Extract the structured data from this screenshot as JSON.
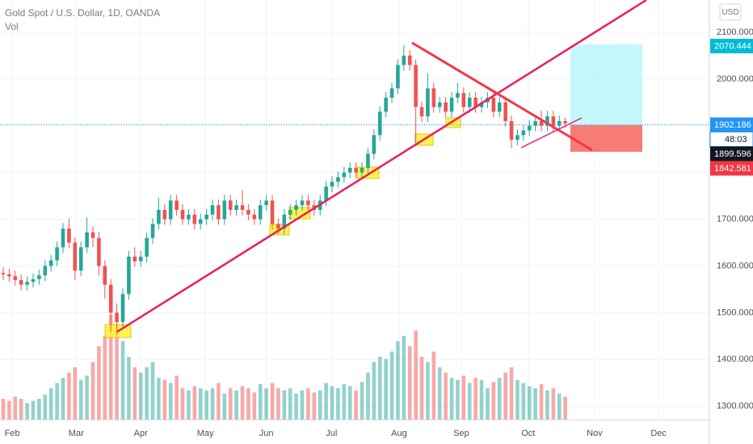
{
  "header": {
    "title": "Gold Spot / U.S. Dollar, 1D, OANDA",
    "volume_label": "Vol",
    "currency": "USD"
  },
  "chart_data": {
    "type": "candlestick",
    "up_color": "#26a69a",
    "down_color": "#ef5350",
    "grid": true,
    "ylim": [
      1271,
      2169
    ],
    "xlim": [
      -0.54,
      118.1
    ],
    "yticks": [
      {
        "value": 2100,
        "label": "2100.000"
      },
      {
        "value": 2000,
        "label": "2000.000"
      },
      {
        "value": 1900,
        "label": "1900.000"
      },
      {
        "value": 1800,
        "label": "1800.000"
      },
      {
        "value": 1700,
        "label": "1700.000"
      },
      {
        "value": 1600,
        "label": "1600.000"
      },
      {
        "value": 1500,
        "label": "1500.000"
      },
      {
        "value": 1400,
        "label": "1400.000"
      },
      {
        "value": 1300,
        "label": "1300.000"
      }
    ],
    "xticks": [
      {
        "value": 1.5,
        "label": "Feb"
      },
      {
        "value": 12.2,
        "label": "Mar"
      },
      {
        "value": 23,
        "label": "Apr"
      },
      {
        "value": 33.8,
        "label": "May"
      },
      {
        "value": 44,
        "label": "Jun"
      },
      {
        "value": 54.9,
        "label": "Jul"
      },
      {
        "value": 66.2,
        "label": "Aug"
      },
      {
        "value": 76.6,
        "label": "Sep"
      },
      {
        "value": 87.8,
        "label": "Oct"
      },
      {
        "value": 98.9,
        "label": "Nov"
      },
      {
        "value": 109.6,
        "label": "Dec"
      }
    ],
    "open": [
      1585,
      1582,
      1578,
      1570,
      1560,
      1566,
      1572,
      1580,
      1600,
      1612,
      1640,
      1680,
      1650,
      1590,
      1640,
      1672,
      1660,
      1600,
      1560,
      1500,
      1480,
      1540,
      1620,
      1610,
      1620,
      1660,
      1690,
      1720,
      1700,
      1740,
      1720,
      1700,
      1710,
      1690,
      1700,
      1710,
      1730,
      1700,
      1740,
      1720,
      1730,
      1720,
      1710,
      1700,
      1730,
      1740,
      1690,
      1680,
      1710,
      1720,
      1730,
      1740,
      1730,
      1720,
      1740,
      1770,
      1780,
      1790,
      1800,
      1810,
      1800,
      1810,
      1840,
      1880,
      1930,
      1960,
      1980,
      2030,
      2050,
      2030,
      1940,
      1920,
      1980,
      1940,
      1950,
      1930,
      1960,
      1970,
      1940,
      1960,
      1940,
      1950,
      1960,
      1930,
      1950,
      1910,
      1870,
      1880,
      1890,
      1900,
      1910,
      1900,
      1920,
      1900,
      1910
    ],
    "high": [
      1597,
      1594,
      1590,
      1582,
      1578,
      1584,
      1592,
      1612,
      1624,
      1652,
      1692,
      1702,
      1662,
      1652,
      1704,
      1684,
      1672,
      1612,
      1572,
      1520,
      1552,
      1632,
      1640,
      1632,
      1672,
      1702,
      1746,
      1732,
      1752,
      1752,
      1732,
      1722,
      1722,
      1712,
      1722,
      1742,
      1742,
      1752,
      1752,
      1742,
      1762,
      1732,
      1722,
      1742,
      1752,
      1752,
      1702,
      1722,
      1732,
      1742,
      1752,
      1752,
      1742,
      1752,
      1782,
      1792,
      1802,
      1812,
      1822,
      1822,
      1822,
      1852,
      1892,
      1942,
      1972,
      1992,
      2042,
      2072,
      2062,
      2042,
      1952,
      2012,
      1992,
      1962,
      1962,
      1972,
      1992,
      1982,
      1972,
      1972,
      1962,
      1972,
      1972,
      1962,
      1962,
      1922,
      1892,
      1902,
      1912,
      1922,
      1932,
      1932,
      1932,
      1922,
      1917
    ],
    "low": [
      1570,
      1566,
      1558,
      1548,
      1548,
      1554,
      1560,
      1568,
      1588,
      1600,
      1628,
      1638,
      1570,
      1578,
      1628,
      1640,
      1580,
      1530,
      1460,
      1452,
      1468,
      1528,
      1598,
      1598,
      1608,
      1648,
      1678,
      1688,
      1688,
      1708,
      1688,
      1688,
      1678,
      1678,
      1688,
      1698,
      1688,
      1688,
      1708,
      1708,
      1708,
      1698,
      1688,
      1688,
      1718,
      1678,
      1668,
      1668,
      1698,
      1708,
      1718,
      1718,
      1708,
      1708,
      1728,
      1758,
      1768,
      1778,
      1788,
      1788,
      1788,
      1798,
      1828,
      1868,
      1918,
      1948,
      1968,
      2018,
      2018,
      1862,
      1908,
      1908,
      1928,
      1928,
      1918,
      1918,
      1948,
      1928,
      1928,
      1928,
      1928,
      1938,
      1918,
      1918,
      1898,
      1852,
      1858,
      1868,
      1878,
      1888,
      1888,
      1888,
      1888,
      1888,
      1895
    ],
    "close": [
      1582,
      1578,
      1570,
      1560,
      1566,
      1572,
      1580,
      1600,
      1612,
      1640,
      1680,
      1650,
      1590,
      1640,
      1672,
      1660,
      1600,
      1560,
      1500,
      1480,
      1540,
      1620,
      1610,
      1620,
      1660,
      1690,
      1720,
      1700,
      1740,
      1720,
      1700,
      1710,
      1690,
      1700,
      1710,
      1730,
      1700,
      1740,
      1720,
      1730,
      1720,
      1710,
      1700,
      1730,
      1740,
      1690,
      1680,
      1710,
      1720,
      1730,
      1740,
      1730,
      1720,
      1740,
      1770,
      1780,
      1790,
      1800,
      1810,
      1800,
      1810,
      1840,
      1880,
      1930,
      1960,
      1980,
      2030,
      2050,
      2030,
      1940,
      1920,
      1980,
      1940,
      1950,
      1930,
      1960,
      1970,
      1940,
      1960,
      1940,
      1950,
      1960,
      1930,
      1950,
      1910,
      1870,
      1880,
      1890,
      1900,
      1910,
      1900,
      1920,
      1900,
      1910,
      1905
    ],
    "volume": [
      20,
      18,
      22,
      20,
      16,
      18,
      20,
      24,
      30,
      35,
      40,
      45,
      50,
      38,
      42,
      55,
      70,
      80,
      100,
      90,
      75,
      60,
      50,
      45,
      50,
      55,
      40,
      38,
      35,
      42,
      30,
      28,
      32,
      30,
      28,
      30,
      35,
      25,
      30,
      28,
      32,
      30,
      26,
      34,
      30,
      35,
      30,
      28,
      30,
      25,
      28,
      30,
      26,
      28,
      35,
      32,
      30,
      34,
      32,
      28,
      36,
      45,
      55,
      60,
      58,
      65,
      75,
      80,
      70,
      85,
      60,
      55,
      65,
      50,
      45,
      40,
      38,
      42,
      35,
      40,
      38,
      30,
      36,
      40,
      45,
      50,
      38,
      35,
      32,
      30,
      34,
      28,
      30,
      25,
      22
    ],
    "price_line": 1902.186,
    "price_tags": [
      {
        "value": 2070.444,
        "color": "#00bcd4"
      },
      {
        "value": 1902.186,
        "color": "#2196f3",
        "countdown": "48:03"
      },
      {
        "value": 1899.596,
        "color": "#131722"
      },
      {
        "value": 1842.581,
        "color": "#f23645"
      }
    ]
  }
}
